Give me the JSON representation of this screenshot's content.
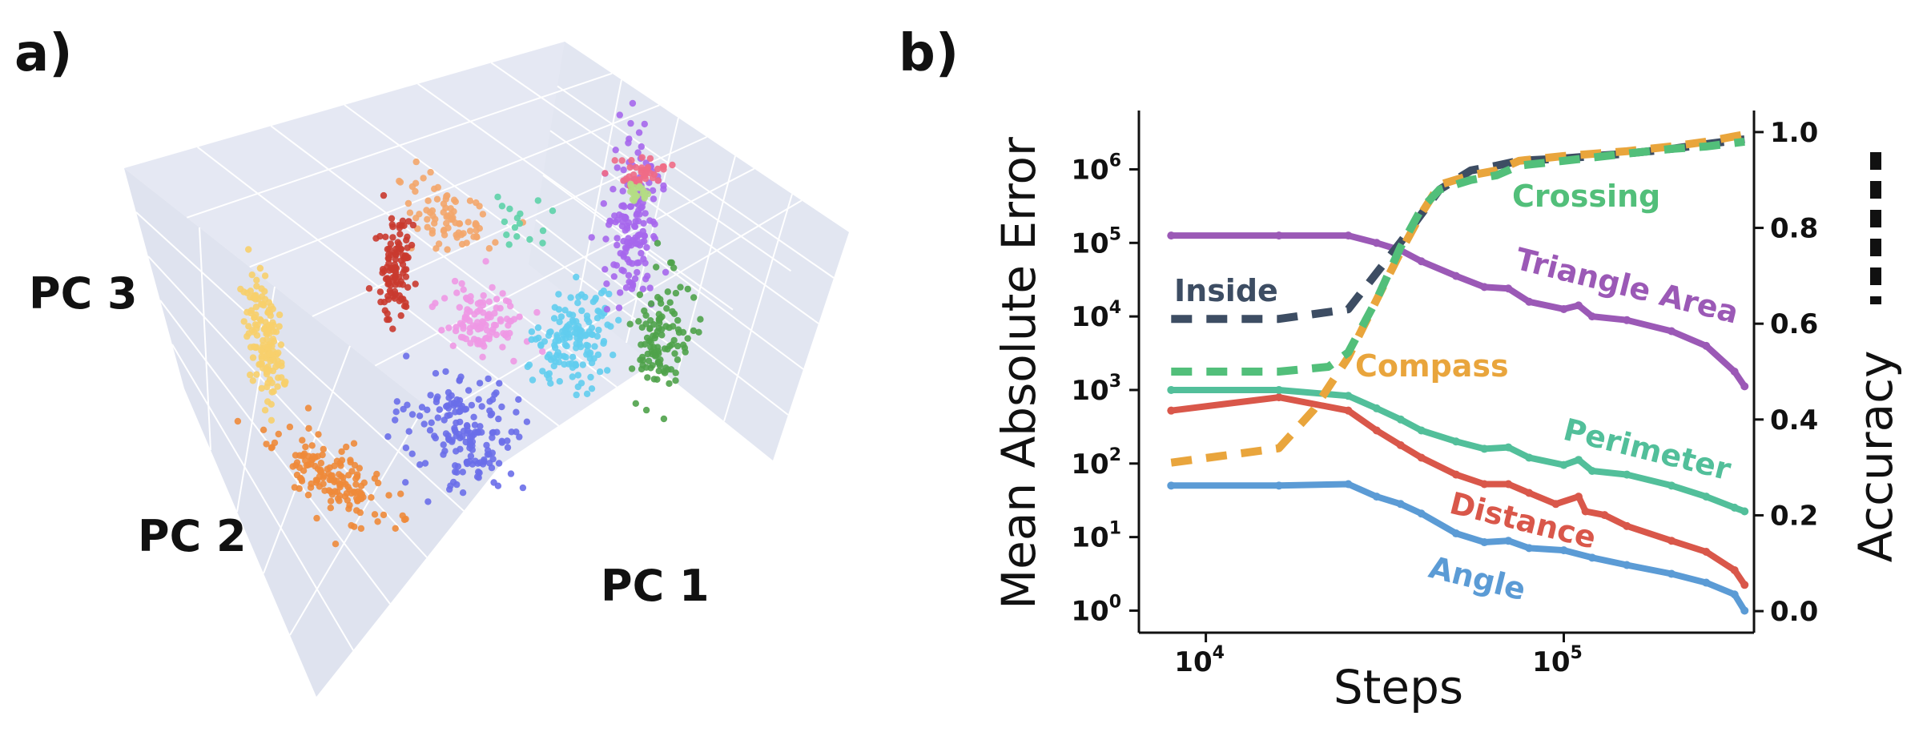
{
  "panels": {
    "a_label": "a)",
    "b_label": "b)"
  },
  "pca": {
    "axis_labels": {
      "pc1": "PC 1",
      "pc2": "PC 2",
      "pc3": "PC 3"
    },
    "pane_color": "#e5e8f3",
    "grid_color": "#ffffff",
    "clusters": [
      {
        "name": "yellow",
        "color": "#f7cf6b",
        "count": 140
      },
      {
        "name": "orange",
        "color": "#ee8a3a",
        "count": 150
      },
      {
        "name": "light-orange",
        "color": "#f3a66b",
        "count": 80
      },
      {
        "name": "red",
        "color": "#c93a2f",
        "count": 110
      },
      {
        "name": "pink",
        "color": "#ee98e4",
        "count": 110
      },
      {
        "name": "blue",
        "color": "#6a6ee9",
        "count": 170
      },
      {
        "name": "cyan",
        "color": "#62cdee",
        "count": 150
      },
      {
        "name": "purple",
        "color": "#a667ec",
        "count": 150
      },
      {
        "name": "coral",
        "color": "#f06b86",
        "count": 40
      },
      {
        "name": "lime",
        "color": "#b4dd84",
        "count": 20
      },
      {
        "name": "green",
        "color": "#4fa24a",
        "count": 110
      },
      {
        "name": "teal",
        "color": "#5dd2a8",
        "count": 16
      }
    ]
  },
  "chart_data": {
    "type": "line",
    "xlabel": "Steps",
    "ylabel": "Mean Absolute Error",
    "y2label": "Accuracy",
    "xscale": "log",
    "yscale": "log",
    "xlim": [
      6500,
      340000
    ],
    "ylim_exp": [
      -0.3,
      6.8
    ],
    "y2lim": [
      -0.045,
      1.045
    ],
    "x_ticks": [
      {
        "value": 10000,
        "base": "10",
        "exp": "4"
      },
      {
        "value": 100000,
        "base": "10",
        "exp": "5"
      }
    ],
    "y_ticks": [
      {
        "value": 0,
        "base": "10",
        "exp": "0"
      },
      {
        "value": 1,
        "base": "10",
        "exp": "1"
      },
      {
        "value": 2,
        "base": "10",
        "exp": "2"
      },
      {
        "value": 3,
        "base": "10",
        "exp": "3"
      },
      {
        "value": 4,
        "base": "10",
        "exp": "4"
      },
      {
        "value": 5,
        "base": "10",
        "exp": "5"
      },
      {
        "value": 6,
        "base": "10",
        "exp": "6"
      }
    ],
    "y2_ticks": [
      "0.0",
      "0.2",
      "0.4",
      "0.6",
      "0.8",
      "1.0"
    ],
    "series": [
      {
        "name": "Angle",
        "label": "Angle",
        "color": "#5b9bd5",
        "style": "solid",
        "axis": "left",
        "x": [
          8000,
          16000,
          25000,
          30000,
          35000,
          40000,
          50000,
          60000,
          70000,
          80000,
          100000,
          120000,
          150000,
          200000,
          250000,
          300000,
          320000
        ],
        "y_exp": [
          1.7,
          1.7,
          1.72,
          1.55,
          1.45,
          1.32,
          1.05,
          0.93,
          0.95,
          0.85,
          0.82,
          0.72,
          0.62,
          0.5,
          0.38,
          0.22,
          0.0
        ]
      },
      {
        "name": "Distance",
        "label": "Distance",
        "color": "#d9574a",
        "style": "solid",
        "axis": "left",
        "x": [
          8000,
          16000,
          25000,
          30000,
          35000,
          40000,
          50000,
          60000,
          70000,
          80000,
          95000,
          110000,
          115000,
          130000,
          150000,
          200000,
          250000,
          300000,
          320000
        ],
        "y_exp": [
          2.72,
          2.9,
          2.72,
          2.45,
          2.25,
          2.08,
          1.85,
          1.72,
          1.72,
          1.6,
          1.45,
          1.55,
          1.35,
          1.3,
          1.15,
          0.95,
          0.8,
          0.55,
          0.35
        ]
      },
      {
        "name": "Perimeter",
        "label": "Perimeter",
        "color": "#52bf9a",
        "style": "solid",
        "axis": "left",
        "x": [
          8000,
          16000,
          25000,
          30000,
          35000,
          40000,
          50000,
          60000,
          70000,
          80000,
          100000,
          110000,
          120000,
          150000,
          200000,
          250000,
          300000,
          320000
        ],
        "y_exp": [
          3.0,
          3.0,
          2.92,
          2.75,
          2.6,
          2.45,
          2.3,
          2.2,
          2.22,
          2.08,
          1.98,
          2.05,
          1.9,
          1.85,
          1.7,
          1.55,
          1.4,
          1.35
        ]
      },
      {
        "name": "Triangle Area",
        "label": "Triangle Area",
        "color": "#9b59b6",
        "style": "solid",
        "axis": "left",
        "x": [
          8000,
          16000,
          25000,
          30000,
          35000,
          40000,
          50000,
          60000,
          70000,
          80000,
          100000,
          110000,
          120000,
          150000,
          200000,
          250000,
          300000,
          320000
        ],
        "y_exp": [
          5.1,
          5.1,
          5.1,
          5.0,
          4.9,
          4.75,
          4.55,
          4.4,
          4.38,
          4.2,
          4.1,
          4.15,
          4.0,
          3.95,
          3.8,
          3.6,
          3.25,
          3.05
        ]
      },
      {
        "name": "Inside",
        "label": "Inside",
        "color": "#3d4d63",
        "style": "dashed",
        "axis": "right",
        "x": [
          8000,
          16000,
          25000,
          35000,
          45000,
          55000,
          65000,
          75000,
          100000,
          150000,
          200000,
          250000,
          320000
        ],
        "y": [
          0.61,
          0.61,
          0.63,
          0.77,
          0.88,
          0.92,
          0.93,
          0.94,
          0.945,
          0.955,
          0.965,
          0.975,
          0.985
        ]
      },
      {
        "name": "Compass",
        "label": "Compass",
        "color": "#e9a53c",
        "style": "dashed",
        "axis": "right",
        "x": [
          8000,
          16000,
          20000,
          25000,
          30000,
          35000,
          40000,
          45000,
          55000,
          65000,
          75000,
          100000,
          150000,
          200000,
          250000,
          320000
        ],
        "y": [
          0.31,
          0.34,
          0.42,
          0.53,
          0.65,
          0.75,
          0.83,
          0.89,
          0.91,
          0.92,
          0.94,
          0.95,
          0.96,
          0.97,
          0.98,
          0.995
        ]
      },
      {
        "name": "Crossing",
        "label": "Crossing",
        "color": "#52bf7a",
        "style": "dashed",
        "axis": "right",
        "x": [
          8000,
          16000,
          22000,
          25000,
          30000,
          35000,
          40000,
          45000,
          55000,
          65000,
          75000,
          100000,
          150000,
          200000,
          250000,
          320000
        ],
        "y": [
          0.5,
          0.5,
          0.51,
          0.54,
          0.65,
          0.76,
          0.84,
          0.88,
          0.9,
          0.91,
          0.93,
          0.94,
          0.955,
          0.965,
          0.97,
          0.98
        ]
      }
    ],
    "legend_marker": {
      "color": "#111111",
      "style": "dashed"
    }
  }
}
